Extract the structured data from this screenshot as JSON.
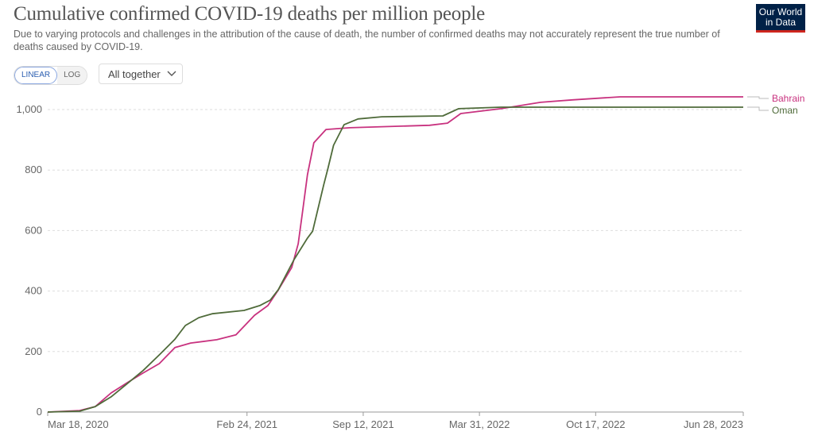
{
  "header": {
    "title": "Cumulative confirmed COVID-19 deaths per million people",
    "subtitle": "Due to varying protocols and challenges in the attribution of the cause of death, the number of confirmed deaths may not accurately represent the true number of deaths caused by COVID-19.",
    "logo_text": "Our World in Data"
  },
  "controls": {
    "linear_label": "LINEAR",
    "log_label": "LOG",
    "active_scale": "linear",
    "dropdown_label": "All together",
    "dropdown_icon": "chevron-down-icon"
  },
  "chart_data": {
    "type": "line",
    "title": "Cumulative confirmed COVID-19 deaths per million people",
    "x_type": "date",
    "xlim": [
      "2020-03-18",
      "2023-06-28"
    ],
    "ylim": [
      0,
      1050
    ],
    "x_ticks": [
      {
        "date": "2020-03-18",
        "label": "Mar 18, 2020"
      },
      {
        "date": "2021-02-24",
        "label": "Feb 24, 2021"
      },
      {
        "date": "2021-09-12",
        "label": "Sep 12, 2021"
      },
      {
        "date": "2022-03-31",
        "label": "Mar 31, 2022"
      },
      {
        "date": "2022-10-17",
        "label": "Oct 17, 2022"
      },
      {
        "date": "2023-06-28",
        "label": "Jun 28, 2023"
      }
    ],
    "y_ticks": [
      {
        "value": 0,
        "label": "0"
      },
      {
        "value": 200,
        "label": "200"
      },
      {
        "value": 400,
        "label": "400"
      },
      {
        "value": 600,
        "label": "600"
      },
      {
        "value": 800,
        "label": "800"
      },
      {
        "value": 1000,
        "label": "1,000"
      }
    ],
    "grid": "horizontal dashed",
    "legend": "right, end-of-line labels",
    "series": [
      {
        "name": "Bahrain",
        "color": "#c8327f",
        "points": [
          [
            "2020-03-18",
            0
          ],
          [
            "2020-05-12",
            5
          ],
          [
            "2020-06-08",
            18
          ],
          [
            "2020-07-05",
            63
          ],
          [
            "2020-08-02",
            97
          ],
          [
            "2020-08-29",
            129
          ],
          [
            "2020-09-26",
            160
          ],
          [
            "2020-10-23",
            213
          ],
          [
            "2020-11-19",
            228
          ],
          [
            "2021-01-03",
            239
          ],
          [
            "2021-02-05",
            255
          ],
          [
            "2021-03-09",
            320
          ],
          [
            "2021-04-01",
            352
          ],
          [
            "2021-04-19",
            404
          ],
          [
            "2021-05-12",
            478
          ],
          [
            "2021-05-23",
            556
          ],
          [
            "2021-05-30",
            654
          ],
          [
            "2021-06-08",
            785
          ],
          [
            "2021-06-19",
            890
          ],
          [
            "2021-07-10",
            934
          ],
          [
            "2021-08-20",
            940
          ],
          [
            "2022-01-04",
            948
          ],
          [
            "2022-02-04",
            955
          ],
          [
            "2022-02-27",
            987
          ],
          [
            "2022-05-07",
            1003
          ],
          [
            "2022-07-14",
            1024
          ],
          [
            "2022-09-07",
            1032
          ],
          [
            "2022-11-28",
            1042
          ],
          [
            "2023-06-28",
            1042
          ]
        ]
      },
      {
        "name": "Oman",
        "color": "#4f6b3a",
        "points": [
          [
            "2020-03-18",
            0
          ],
          [
            "2020-05-12",
            3
          ],
          [
            "2020-06-08",
            18
          ],
          [
            "2020-07-05",
            50
          ],
          [
            "2020-08-02",
            94
          ],
          [
            "2020-08-29",
            137
          ],
          [
            "2020-09-26",
            189
          ],
          [
            "2020-10-23",
            241
          ],
          [
            "2020-11-10",
            286
          ],
          [
            "2020-12-03",
            312
          ],
          [
            "2020-12-26",
            325
          ],
          [
            "2021-02-19",
            336
          ],
          [
            "2021-03-18",
            352
          ],
          [
            "2021-04-05",
            370
          ],
          [
            "2021-04-19",
            405
          ],
          [
            "2021-05-16",
            504
          ],
          [
            "2021-06-08",
            575
          ],
          [
            "2021-06-17",
            598
          ],
          [
            "2021-07-06",
            751
          ],
          [
            "2021-07-13",
            803
          ],
          [
            "2021-07-23",
            882
          ],
          [
            "2021-08-10",
            950
          ],
          [
            "2021-09-03",
            969
          ],
          [
            "2021-10-14",
            976
          ],
          [
            "2022-01-27",
            979
          ],
          [
            "2022-02-23",
            1003
          ],
          [
            "2022-05-07",
            1008
          ],
          [
            "2023-06-28",
            1008
          ]
        ]
      }
    ]
  }
}
